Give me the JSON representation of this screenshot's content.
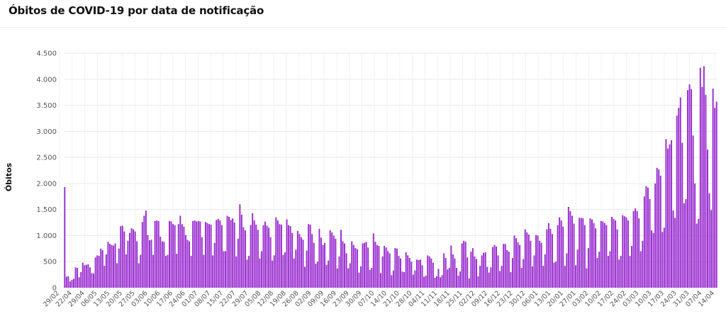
{
  "title": "Óbitos de COVID-19 por data de notificação",
  "chart_data": {
    "type": "bar",
    "title": "Óbitos de COVID-19 por data de notificação",
    "xlabel": "",
    "ylabel": "Óbitos",
    "ylim": [
      0,
      4500
    ],
    "y_ticks": [
      0,
      500,
      1000,
      1500,
      2000,
      2500,
      3000,
      3500,
      4000,
      4500
    ],
    "y_tick_labels": [
      "0",
      "500",
      "1.000",
      "1.500",
      "2.000",
      "2.500",
      "3.000",
      "3.500",
      "4.000",
      "4.500"
    ],
    "grid": true,
    "legend": "none",
    "bar_color": "#9b30d0",
    "start_date": "29/02",
    "x_tick_labels": [
      "29/02",
      "22/04",
      "29/04",
      "06/05",
      "13/05",
      "20/05",
      "27/05",
      "03/06",
      "10/06",
      "17/06",
      "24/06",
      "01/07",
      "08/07",
      "15/07",
      "22/07",
      "29/07",
      "05/08",
      "12/08",
      "19/08",
      "26/08",
      "02/09",
      "09/09",
      "16/09",
      "23/09",
      "30/09",
      "07/10",
      "14/10",
      "21/10",
      "28/10",
      "04/11",
      "11/11",
      "18/11",
      "25/11",
      "02/12",
      "09/12",
      "16/12",
      "23/12",
      "30/12",
      "06/01",
      "13/01",
      "20/01",
      "27/01",
      "03/02",
      "10/02",
      "17/02",
      "24/02",
      "03/03",
      "10/03",
      "17/03",
      "24/03",
      "31/03",
      "07/04",
      "14/04"
    ],
    "values": [
      1930,
      210,
      220,
      120,
      150,
      170,
      390,
      380,
      200,
      300,
      480,
      430,
      440,
      450,
      390,
      280,
      270,
      580,
      620,
      610,
      750,
      720,
      420,
      640,
      880,
      840,
      820,
      810,
      850,
      470,
      750,
      1180,
      1190,
      1080,
      640,
      900,
      1050,
      1140,
      1120,
      1080,
      890,
      470,
      630,
      1260,
      1380,
      1480,
      1010,
      910,
      920,
      630,
      1280,
      1290,
      1280,
      980,
      890,
      880,
      610,
      630,
      1280,
      1270,
      1220,
      1200,
      650,
      1220,
      1380,
      1220,
      1170,
      1010,
      920,
      890,
      610,
      1280,
      1290,
      1270,
      1280,
      1270,
      970,
      630,
      1260,
      1240,
      1220,
      1210,
      620,
      860,
      1300,
      1320,
      1290,
      1200,
      700,
      700,
      1380,
      1360,
      1300,
      1330,
      1250,
      600,
      940,
      1600,
      1400,
      1160,
      1100,
      540,
      610,
      1200,
      1430,
      1290,
      1210,
      1110,
      560,
      700,
      1200,
      1270,
      1190,
      1150,
      970,
      520,
      620,
      1350,
      1290,
      1220,
      1210,
      630,
      680,
      1310,
      1200,
      1180,
      1050,
      560,
      730,
      1090,
      1030,
      970,
      920,
      400,
      710,
      1220,
      1210,
      1030,
      860,
      460,
      500,
      1130,
      960,
      820,
      860,
      440,
      520,
      1100,
      1060,
      1000,
      940,
      370,
      600,
      1110,
      890,
      850,
      660,
      370,
      470,
      890,
      820,
      760,
      740,
      290,
      410,
      850,
      860,
      880,
      770,
      340,
      380,
      1040,
      880,
      820,
      800,
      280,
      600,
      800,
      770,
      700,
      660,
      240,
      330,
      760,
      750,
      610,
      560,
      310,
      300,
      680,
      620,
      570,
      500,
      250,
      330,
      540,
      530,
      540,
      430,
      210,
      230,
      620,
      600,
      560,
      480,
      190,
      220,
      360,
      200,
      240,
      660,
      570,
      350,
      380,
      810,
      640,
      560,
      380,
      230,
      310,
      850,
      900,
      880,
      580,
      180,
      690,
      760,
      600,
      550,
      220,
      420,
      620,
      670,
      680,
      400,
      290,
      390,
      780,
      820,
      790,
      620,
      320,
      420,
      840,
      840,
      720,
      690,
      300,
      570,
      1000,
      950,
      870,
      820,
      380,
      550,
      1120,
      1060,
      1020,
      900,
      410,
      620,
      1010,
      1000,
      900,
      860,
      420,
      640,
      1120,
      1240,
      1130,
      1030,
      480,
      500,
      1200,
      1350,
      1290,
      1170,
      420,
      660,
      1550,
      1470,
      1380,
      1230,
      430,
      730,
      1340,
      1340,
      1330,
      1200,
      370,
      760,
      1330,
      1310,
      1240,
      1140,
      570,
      690,
      1280,
      1270,
      1240,
      1200,
      610,
      700,
      1360,
      1320,
      1290,
      1120,
      540,
      610,
      1390,
      1370,
      1350,
      1290,
      610,
      800,
      1470,
      1520,
      1470,
      1330,
      700,
      900,
      1750,
      1950,
      1920,
      1700,
      1100,
      1050,
      2000,
      2300,
      2270,
      2150,
      1070,
      1150,
      2850,
      2670,
      2750,
      2830,
      1480,
      1340,
      3300,
      3450,
      3650,
      2780,
      1620,
      1700,
      3790,
      3900,
      3810,
      2920,
      2000,
      1230,
      1320,
      4220,
      3850,
      4250,
      3700,
      2650,
      1810,
      1490,
      3820,
      3450,
      3570
    ]
  }
}
